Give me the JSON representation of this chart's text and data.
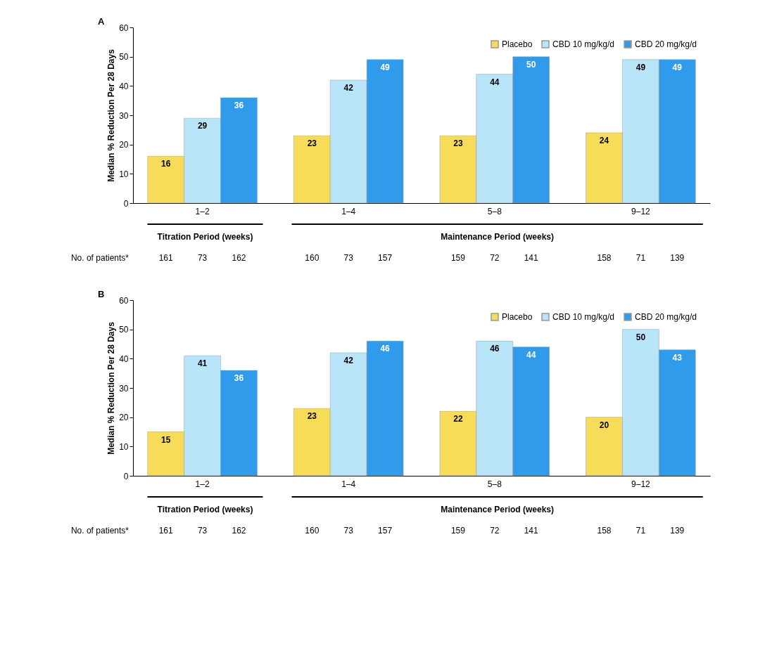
{
  "chart_data": [
    {
      "type": "bar",
      "title": "A",
      "ylabel": "Median % Reduction Per 28 Days",
      "categories": [
        "1–2",
        "1–4",
        "5–8",
        "9–12"
      ],
      "series": [
        {
          "name": "Placebo",
          "color": "#f7dc5a",
          "values": [
            16,
            23,
            23,
            24
          ]
        },
        {
          "name": "CBD 10 mg/kg/d",
          "color": "#b9e5f8",
          "values": [
            29,
            42,
            44,
            49
          ]
        },
        {
          "name": "CBD 20 mg/kg/d",
          "color": "#2f9bea",
          "values": [
            36,
            49,
            50,
            49
          ]
        }
      ],
      "ylim": [
        0,
        60
      ],
      "yticks": [
        0,
        10,
        20,
        30,
        40,
        50,
        60
      ],
      "grid": false,
      "legend": "top right",
      "data_labels": true,
      "annotations": [
        "Titration Period (weeks)",
        "Maintenance Period (weeks)",
        "No. of patients*",
        "161",
        "73",
        "162",
        "160",
        "73",
        "157",
        "159",
        "72",
        "141",
        "158",
        "71",
        "139"
      ]
    },
    {
      "type": "bar",
      "title": "B",
      "ylabel": "Median % Reduction Per 28 Days",
      "categories": [
        "1–2",
        "1–4",
        "5–8",
        "9–12"
      ],
      "series": [
        {
          "name": "Placebo",
          "color": "#f7dc5a",
          "values": [
            15,
            23,
            22,
            20
          ]
        },
        {
          "name": "CBD 10 mg/kg/d",
          "color": "#b9e5f8",
          "values": [
            41,
            42,
            46,
            50
          ]
        },
        {
          "name": "CBD 20 mg/kg/d",
          "color": "#2f9bea",
          "values": [
            36,
            46,
            44,
            43
          ]
        }
      ],
      "ylim": [
        0,
        60
      ],
      "yticks": [
        0,
        10,
        20,
        30,
        40,
        50,
        60
      ],
      "grid": false,
      "legend": "top right",
      "data_labels": true,
      "annotations": [
        "Titration Period (weeks)",
        "Maintenance Period (weeks)",
        "No. of patients*",
        "161",
        "73",
        "162",
        "160",
        "73",
        "157",
        "159",
        "72",
        "141",
        "158",
        "71",
        "139"
      ]
    }
  ]
}
